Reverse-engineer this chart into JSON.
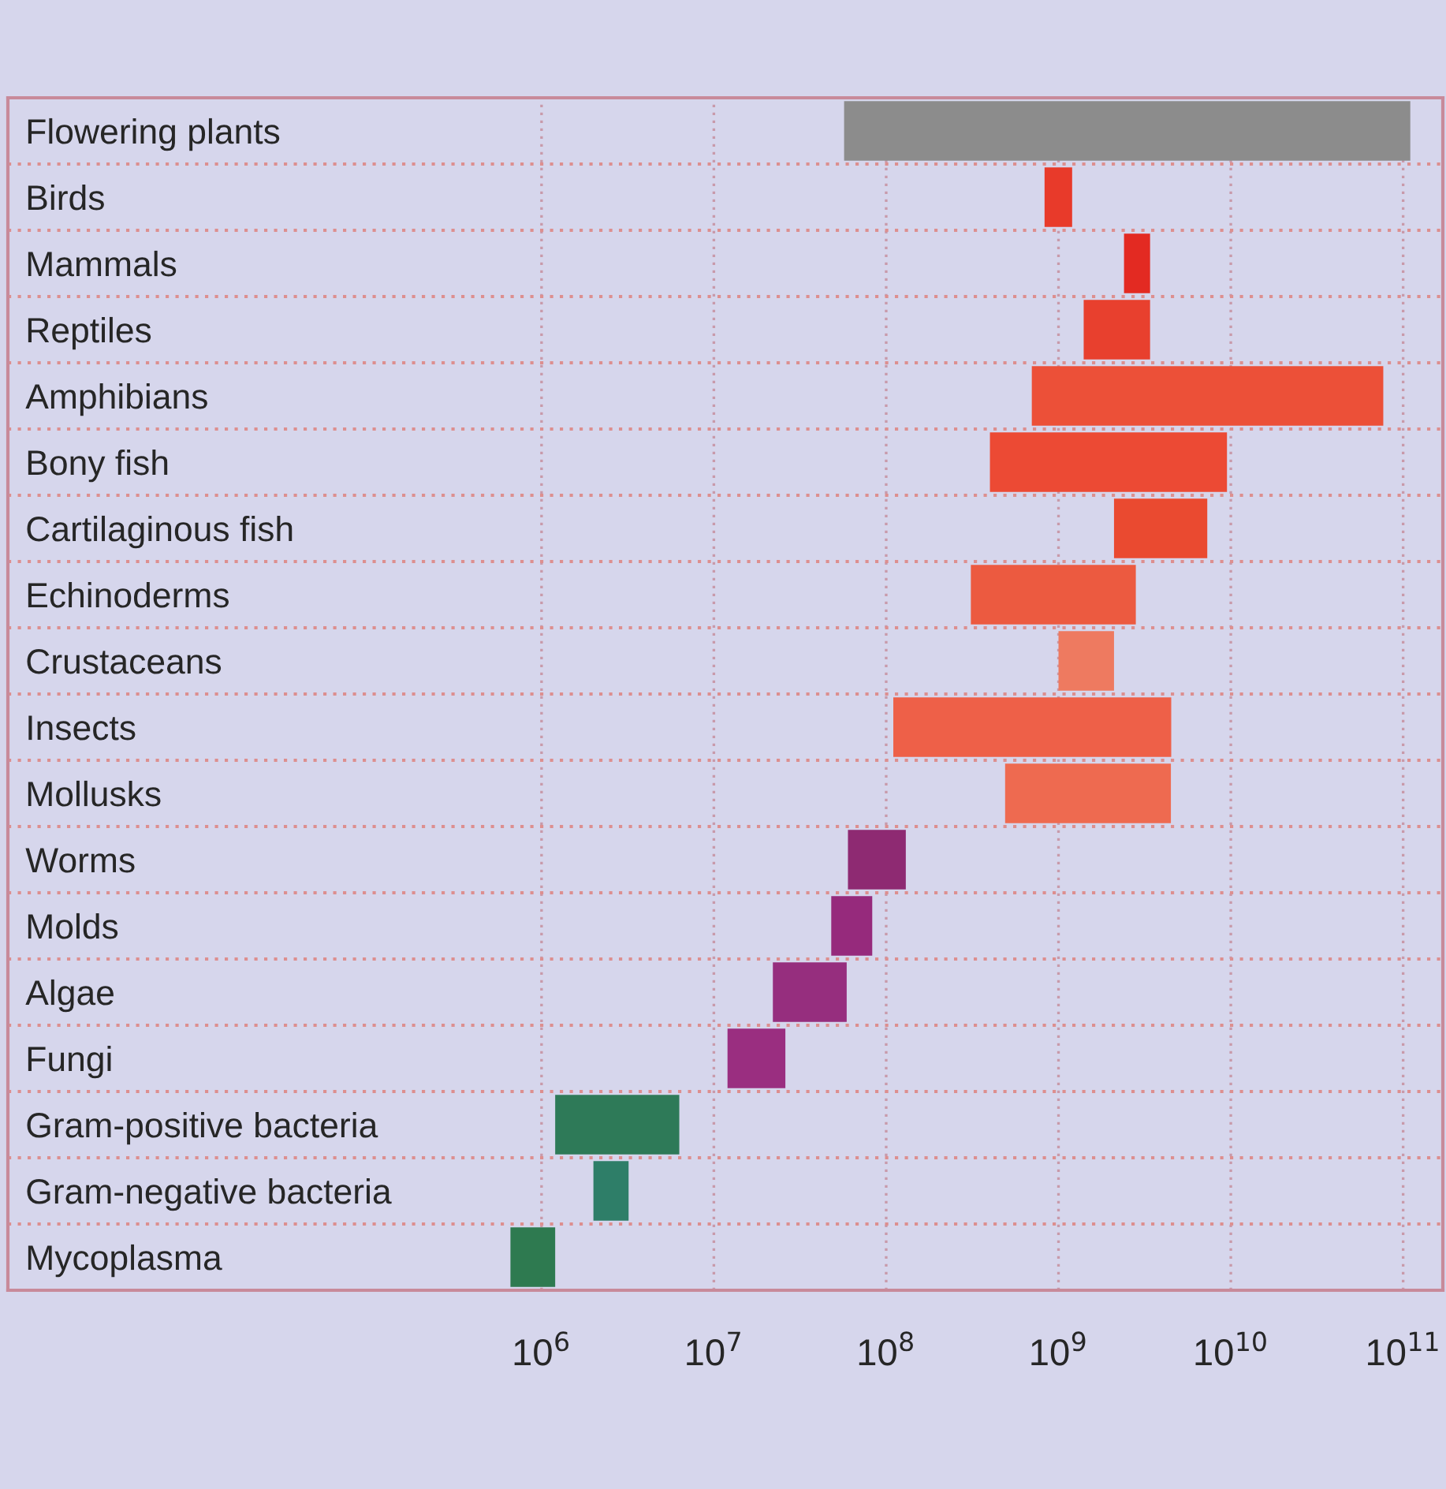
{
  "chart_data": {
    "type": "bar",
    "orientation": "horizontal",
    "log": "x",
    "categories": [
      "Flowering plants",
      "Birds",
      "Mammals",
      "Reptiles",
      "Amphibians",
      "Bony fish",
      "Cartilaginous fish",
      "Echinoderms",
      "Crustaceans",
      "Insects",
      "Mollusks",
      "Worms",
      "Molds",
      "Algae",
      "Fungi",
      "Gram-positive bacteria",
      "Gram-negative bacteria",
      "Mycoplasma"
    ],
    "base": [
      57000000.0,
      830000000.0,
      2400000000.0,
      1400000000.0,
      700000000.0,
      400000000.0,
      2100000000.0,
      310000000.0,
      1000000000.0,
      110000000.0,
      490000000.0,
      60000000.0,
      48000000.0,
      22000000.0,
      12000000.0,
      1200000.0,
      2000000.0,
      660000.0
    ],
    "values": [
      110000000000.0,
      370000000.0,
      1000000000.0,
      2000000000.0,
      76000000000.0,
      9100000000.0,
      5200000000.0,
      2500000000.0,
      1100000000.0,
      4400000000.0,
      4000000000.0,
      70000000.0,
      35000000.0,
      37000000.0,
      14000000.0,
      5100000.0,
      1200000.0,
      540000.0
    ],
    "colors": [
      "#8c8c8c",
      "#e83a2a",
      "#e32a22",
      "#e8402e",
      "#ec5038",
      "#ec4a34",
      "#ea4a30",
      "#ec5a40",
      "#ee7a60",
      "#ee6048",
      "#ee6a50",
      "#8e2a72",
      "#962a7c",
      "#962e7e",
      "#9a2e80",
      "#2e7a58",
      "#2e7e68",
      "#2e7a50"
    ],
    "xlim": [
      800,
      170000000000.0
    ],
    "xticks": [
      {
        "value": 1000000.0,
        "label": "10$^{6}$"
      },
      {
        "value": 10000000.0,
        "label": "10$^{7}$"
      },
      {
        "value": 100000000.0,
        "label": "10$^{8}$"
      },
      {
        "value": 1000000000.0,
        "label": "10$^{9}$"
      },
      {
        "value": 10000000000.0,
        "label": "10$^{10}$"
      },
      {
        "value": 100000000000.0,
        "label": "10$^{11}$"
      }
    ],
    "grid": true,
    "legend": false
  }
}
